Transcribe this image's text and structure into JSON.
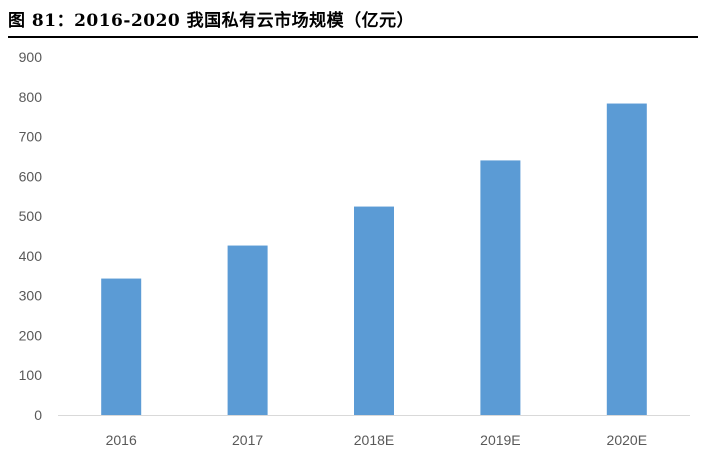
{
  "figure": {
    "title": "图 81：2016-2020 我国私有云市场规模（亿元）"
  },
  "chart_data": {
    "type": "bar",
    "title": "",
    "xlabel": "",
    "ylabel": "",
    "categories": [
      "2016",
      "2017",
      "2018E",
      "2019E",
      "2020E"
    ],
    "values": [
      343,
      426,
      524,
      640,
      783
    ],
    "ylim": [
      0,
      900
    ],
    "yticks": [
      "0",
      "100",
      "200",
      "300",
      "400",
      "500",
      "600",
      "700",
      "800",
      "900"
    ],
    "grid": false,
    "legend": "none",
    "bar_color": "#5B9BD5"
  }
}
